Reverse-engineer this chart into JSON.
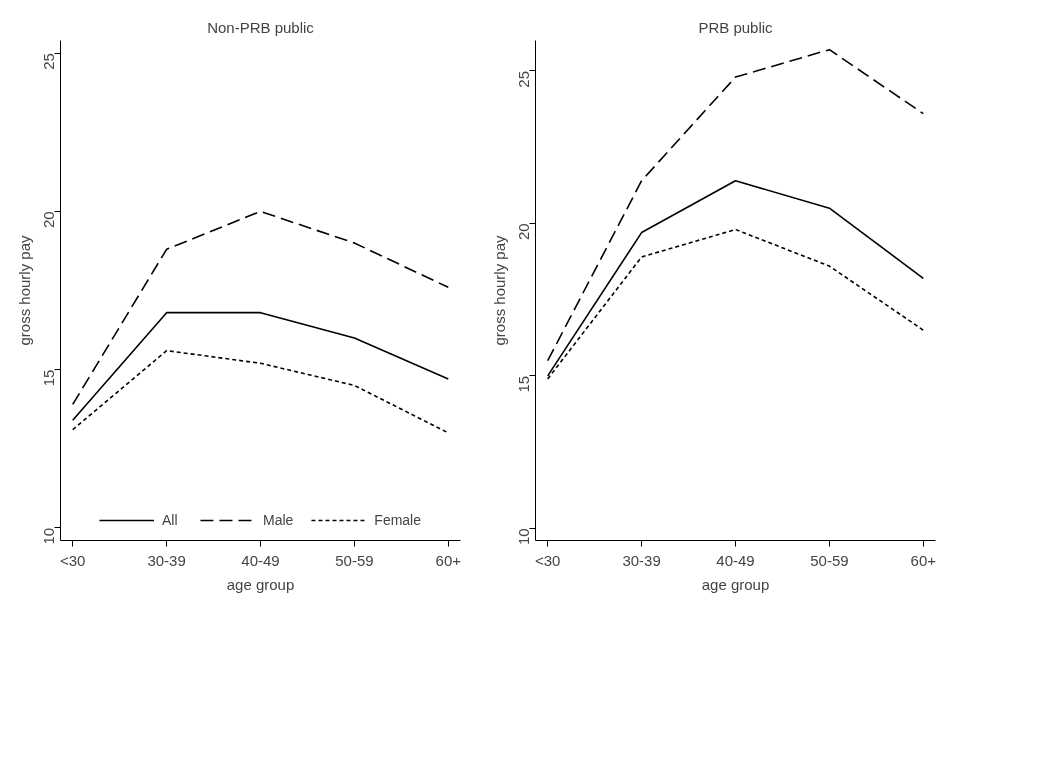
{
  "chart_data": [
    {
      "type": "line",
      "title": "Non-PRB public",
      "xlabel": "age group",
      "ylabel": "gross hourly pay",
      "categories": [
        "<30",
        "30-39",
        "40-49",
        "50-59",
        "60+"
      ],
      "ylim": [
        9.6,
        25.4
      ],
      "yticks": [
        10,
        15,
        20,
        25
      ],
      "grid": false,
      "legend": "bottom",
      "marker": "none",
      "series": [
        {
          "name": "All",
          "color": "#000000",
          "line_style": "solid",
          "values": [
            13.4,
            16.8,
            16.8,
            16.0,
            14.7
          ]
        },
        {
          "name": "Male",
          "color": "#000000",
          "line_style": "dashed",
          "values": [
            13.9,
            18.8,
            20.0,
            19.0,
            17.6
          ]
        },
        {
          "name": "Female",
          "color": "#000000",
          "line_style": "dotted",
          "values": [
            13.1,
            15.6,
            15.2,
            14.5,
            13.0
          ]
        }
      ]
    },
    {
      "type": "line",
      "title": "PRB public",
      "xlabel": "age group",
      "ylabel": "gross hourly pay",
      "categories": [
        "<30",
        "30-39",
        "40-49",
        "50-59",
        "60+"
      ],
      "ylim": [
        9.6,
        26.0
      ],
      "yticks": [
        10,
        15,
        20,
        25
      ],
      "grid": false,
      "marker": "none",
      "series": [
        {
          "color": "#000000",
          "line_style": "solid",
          "values": [
            15.0,
            19.7,
            21.4,
            20.5,
            18.2
          ]
        },
        {
          "color": "#000000",
          "line_style": "dashed",
          "values": [
            15.5,
            21.4,
            24.8,
            25.7,
            23.6
          ]
        },
        {
          "color": "#000000",
          "line_style": "dotted",
          "values": [
            14.9,
            18.9,
            19.8,
            18.6,
            16.5
          ]
        }
      ]
    }
  ]
}
